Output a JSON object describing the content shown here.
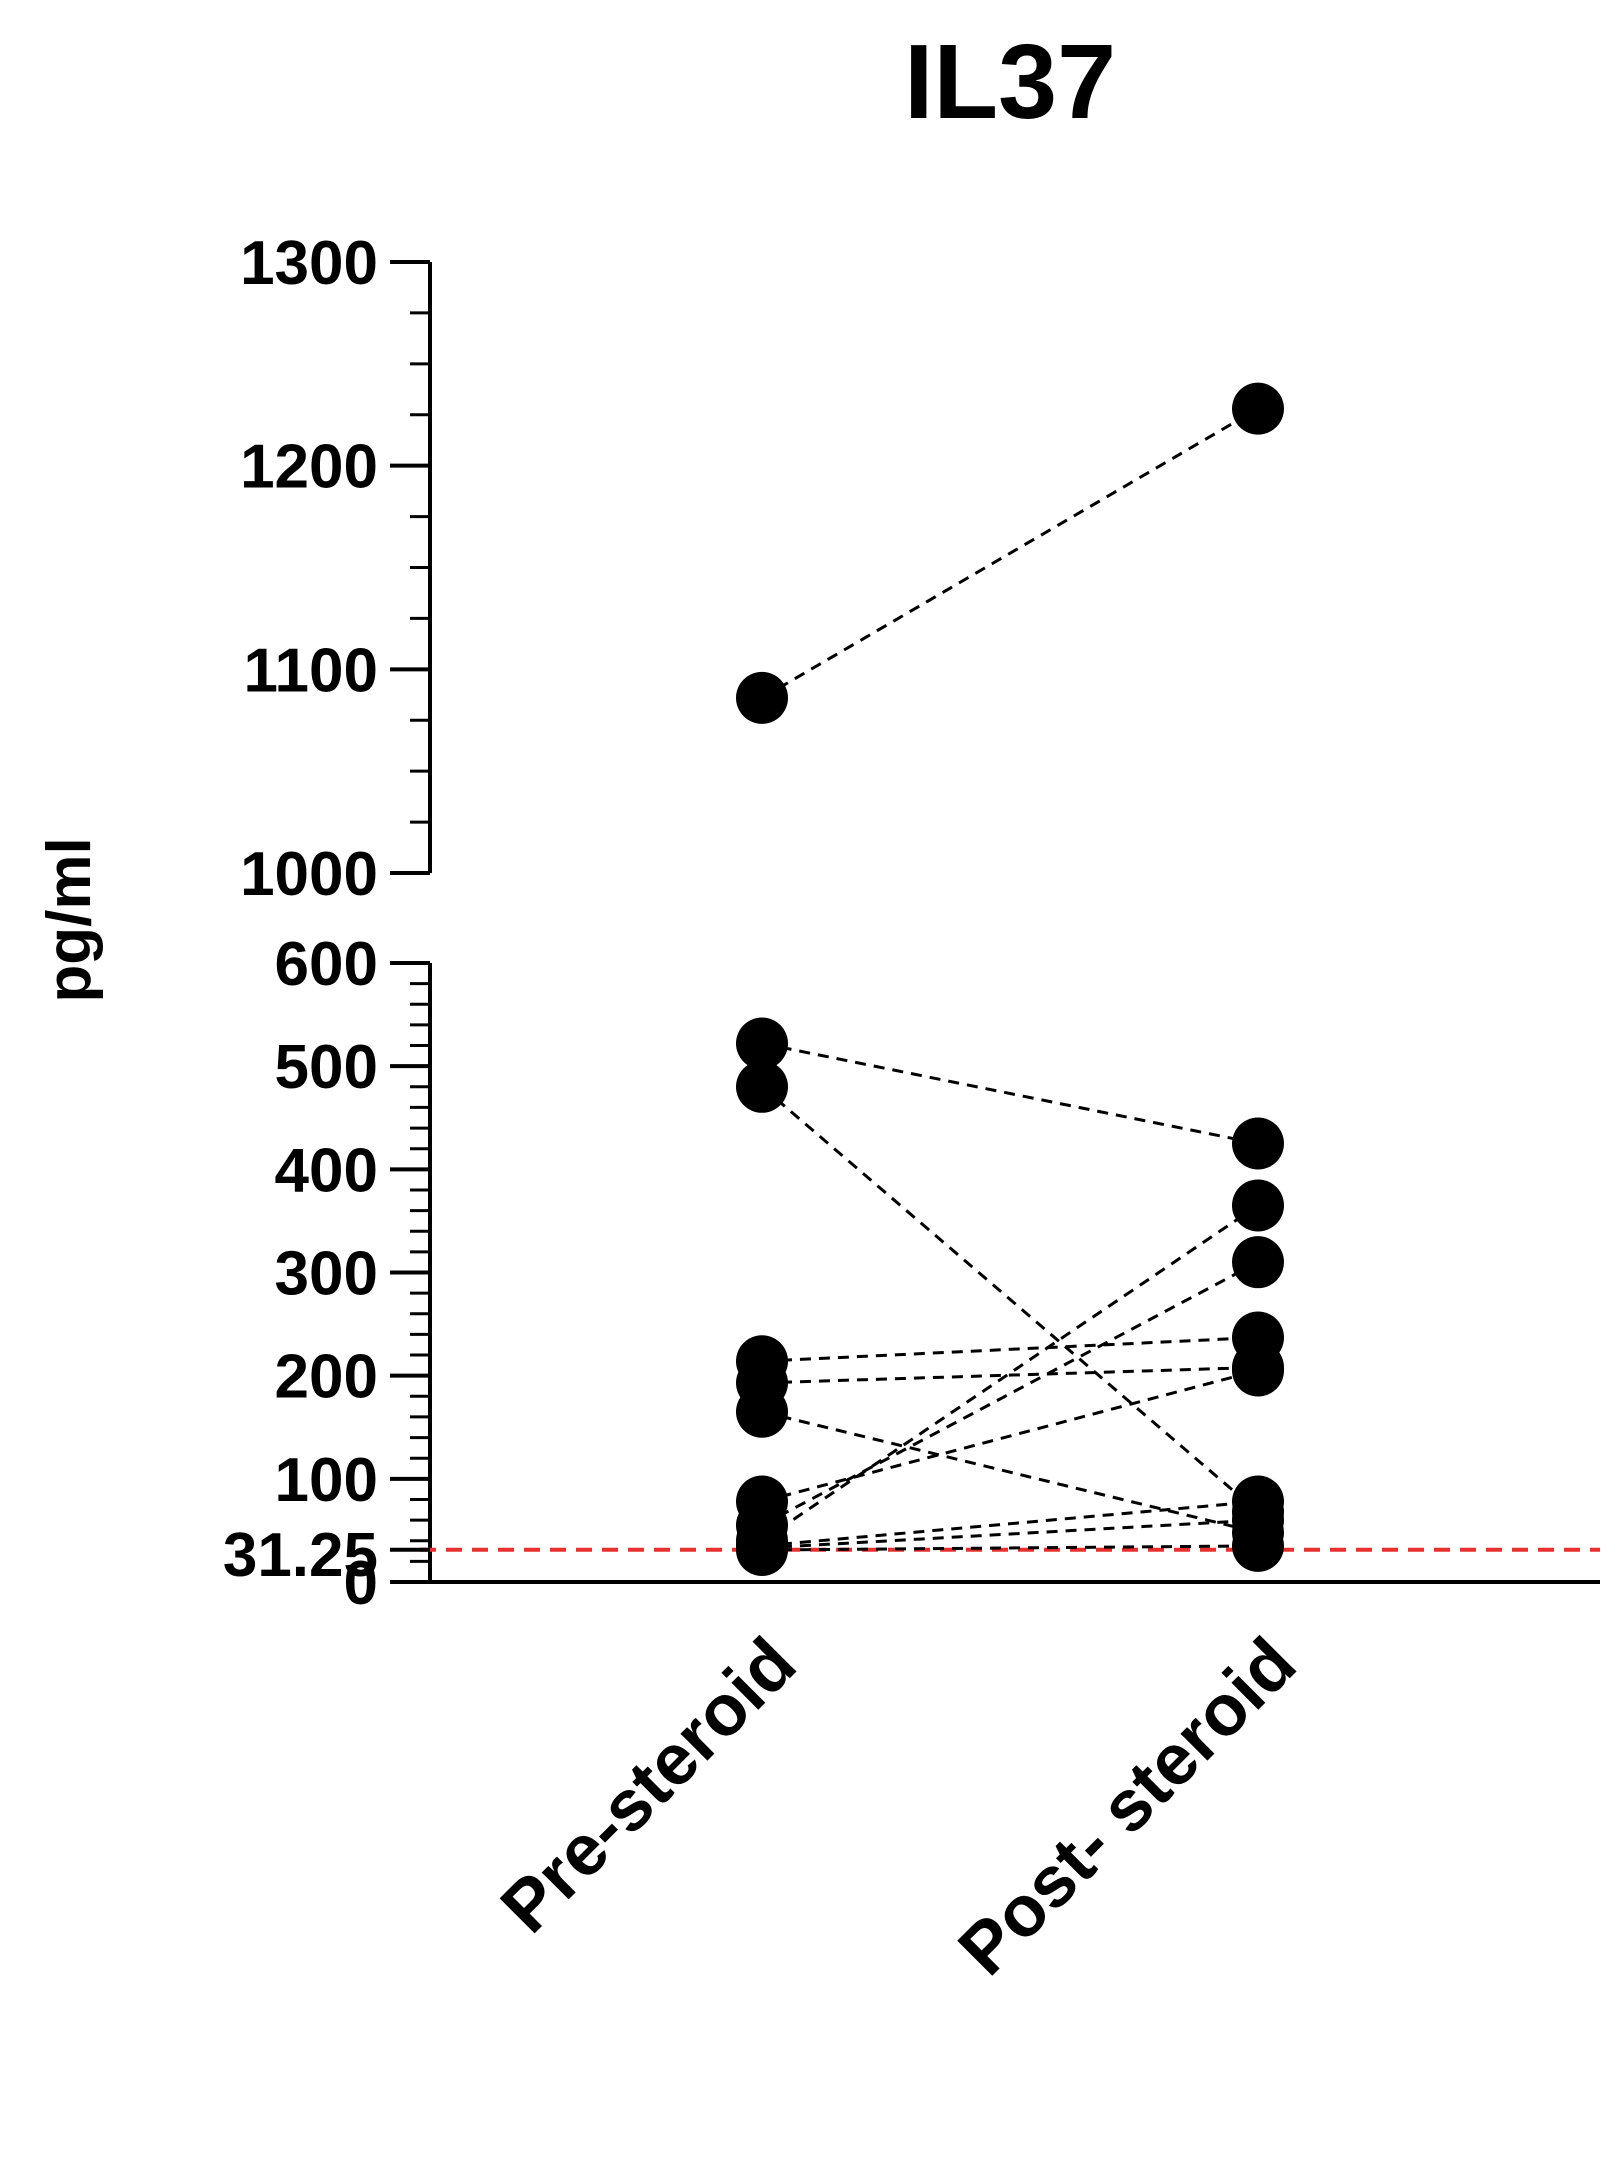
{
  "chart_data": {
    "type": "scatter",
    "title": "IL37",
    "ylabel": "pg/ml",
    "xlabel": "",
    "categories": [
      "Pre-steroid",
      "Post- steroid"
    ],
    "y_axis_segments": [
      {
        "range": [
          0,
          600
        ],
        "ticks": [
          0,
          100,
          200,
          300,
          400,
          500,
          600
        ],
        "tick_labels": [
          "0",
          "100",
          "200",
          "300",
          "400",
          "500",
          "600"
        ],
        "minor_step": 20
      },
      {
        "range": [
          1000,
          1300
        ],
        "ticks": [
          1000,
          1100,
          1200,
          1300
        ],
        "tick_labels": [
          "1000",
          "1100",
          "1200",
          "1300"
        ],
        "minor_step": 25
      }
    ],
    "reference_line": {
      "value": 31.25,
      "label": "31.25",
      "color": "#e8312f",
      "style": "dashed"
    },
    "pairs": [
      {
        "pre": 1086,
        "post": 1228
      },
      {
        "pre": 522,
        "post": 425
      },
      {
        "pre": 480,
        "post": 68
      },
      {
        "pre": 214,
        "post": 237
      },
      {
        "pre": 193,
        "post": 208
      },
      {
        "pre": 165,
        "post": 48
      },
      {
        "pre": 78,
        "post": 205
      },
      {
        "pre": 55,
        "post": 310
      },
      {
        "pre": 40,
        "post": 365
      },
      {
        "pre": 35,
        "post": 78
      },
      {
        "pre": 33,
        "post": 60
      },
      {
        "pre": 31,
        "post": 35
      }
    ],
    "marker_color": "#000000",
    "line_style": "dashed",
    "grid": false,
    "legend": "none"
  }
}
